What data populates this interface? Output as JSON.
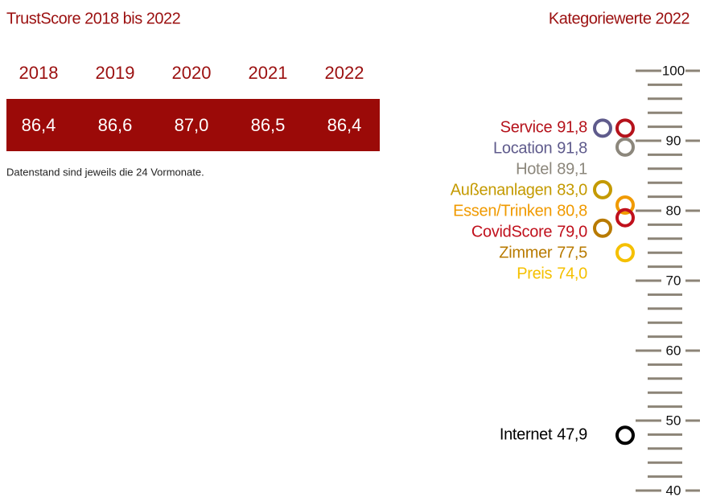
{
  "header": {
    "title": "TrustScore 2018 bis 2022",
    "note": "Datenstand sind jeweils die 24 Vormonate."
  },
  "table": {
    "years": [
      "2018",
      "2019",
      "2020",
      "2021",
      "2022"
    ],
    "scores": [
      "86,4",
      "86,6",
      "87,0",
      "86,5",
      "86,4"
    ]
  },
  "chart_data": {
    "type": "scale",
    "title": "Kategoriewerte 2022",
    "categories": [
      "Service",
      "Location",
      "Hotel",
      "Außenanlagen",
      "Essen/Trinken",
      "CovidScore",
      "Zimmer",
      "Preis",
      "Internet"
    ],
    "values": [
      91.8,
      91.8,
      89.1,
      83.0,
      80.8,
      79.0,
      77.5,
      74.0,
      47.9
    ],
    "value_labels": [
      "91,8",
      "91,8",
      "89,1",
      "83,0",
      "80,8",
      "79,0",
      "77,5",
      "74,0",
      "47,9"
    ],
    "colors": [
      "#b5121b",
      "#5f5b8c",
      "#8c877c",
      "#c49a00",
      "#f09a00",
      "#c0101c",
      "#b87a00",
      "#f5c000",
      "#000000"
    ],
    "ylim": [
      40,
      100
    ],
    "yticks": [
      40,
      50,
      60,
      70,
      80,
      90,
      100
    ],
    "yticks_minor": [
      42,
      44,
      46,
      48,
      52,
      54,
      56,
      58,
      62,
      64,
      66,
      68,
      72,
      74,
      76,
      78,
      82,
      84,
      86,
      88,
      92,
      94,
      96,
      98
    ]
  }
}
